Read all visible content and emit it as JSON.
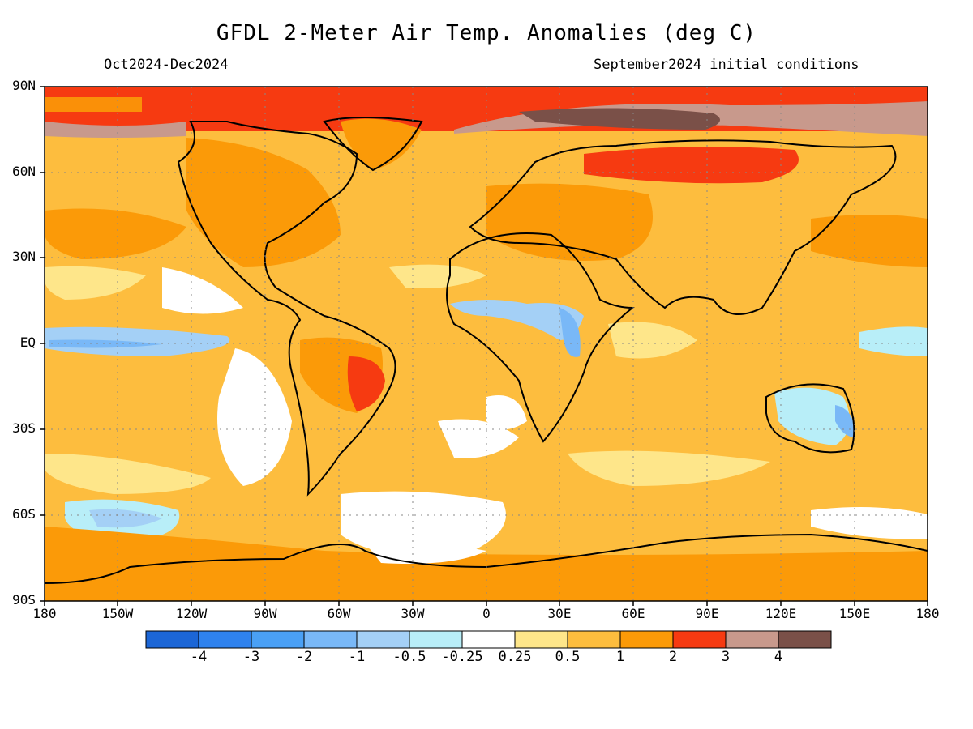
{
  "title": "GFDL 2-Meter Air Temp. Anomalies (deg C)",
  "subtitle_left": "Oct2024-Dec2024",
  "subtitle_right": "September2024 initial conditions",
  "lat_labels": [
    "90N",
    "60N",
    "30N",
    "EQ",
    "30S",
    "60S",
    "90S"
  ],
  "lon_labels": [
    "180",
    "150W",
    "120W",
    "90W",
    "60W",
    "30W",
    "0",
    "30E",
    "60E",
    "90E",
    "120E",
    "150E",
    "180"
  ],
  "colorbar": {
    "colors": [
      "#1c66d6",
      "#2f82ee",
      "#4aa0f5",
      "#79b8f7",
      "#a4d0f6",
      "#b8eef8",
      "#ffffff",
      "#fee68a",
      "#fdbd3e",
      "#fb9a08",
      "#f63a11",
      "#c8998c",
      "#7a5048"
    ],
    "labels": [
      "-4",
      "-3",
      "-2",
      "-1",
      "-0.5",
      "-0.25",
      "0.25",
      "0.5",
      "1",
      "2",
      "3",
      "4"
    ]
  }
}
